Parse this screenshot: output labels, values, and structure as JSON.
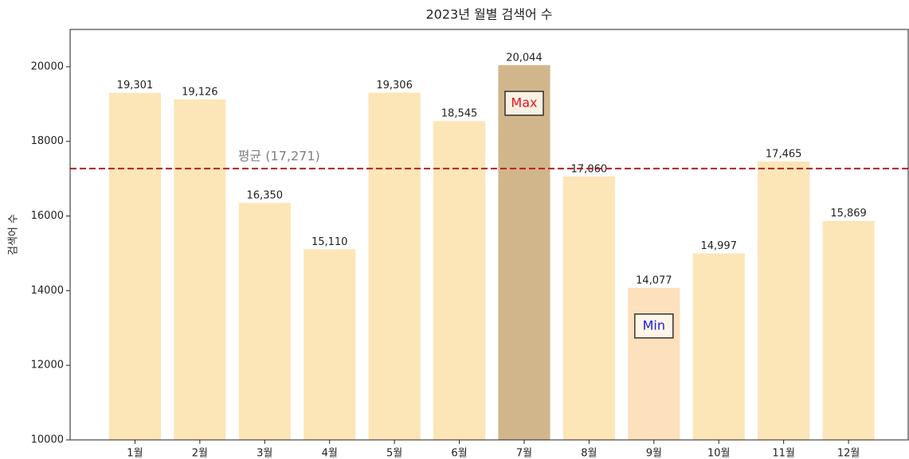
{
  "chart_data": {
    "type": "bar",
    "title": "2023년 월별 검색어 수",
    "y_label": "검색어 수",
    "categories": [
      "1월",
      "2월",
      "3월",
      "4월",
      "5월",
      "6월",
      "7월",
      "8월",
      "9월",
      "10월",
      "11월",
      "12월"
    ],
    "values": [
      19301,
      19126,
      16350,
      15110,
      19306,
      18545,
      20044,
      17060,
      14077,
      14997,
      17465,
      15869
    ],
    "value_labels": [
      "19,301",
      "19,126",
      "16,350",
      "15,110",
      "19,306",
      "18,545",
      "20,044",
      "17,060",
      "14,077",
      "14,997",
      "17,465",
      "15,869"
    ],
    "color": "#fce5b7",
    "max_color": "#d2b68b",
    "min_color": "#fde0bc",
    "max_label": "Max",
    "max_label_color": "#e0141e",
    "min_label": "Min",
    "min_label_color": "#1a1ae0",
    "average": {
      "value": 17271,
      "label": "평균 (17,271)"
    },
    "average_color": "#b22222",
    "ylim": [
      10000,
      21000
    ],
    "yticks": [
      10000,
      12000,
      14000,
      16000,
      18000,
      20000
    ],
    "grid": false
  }
}
